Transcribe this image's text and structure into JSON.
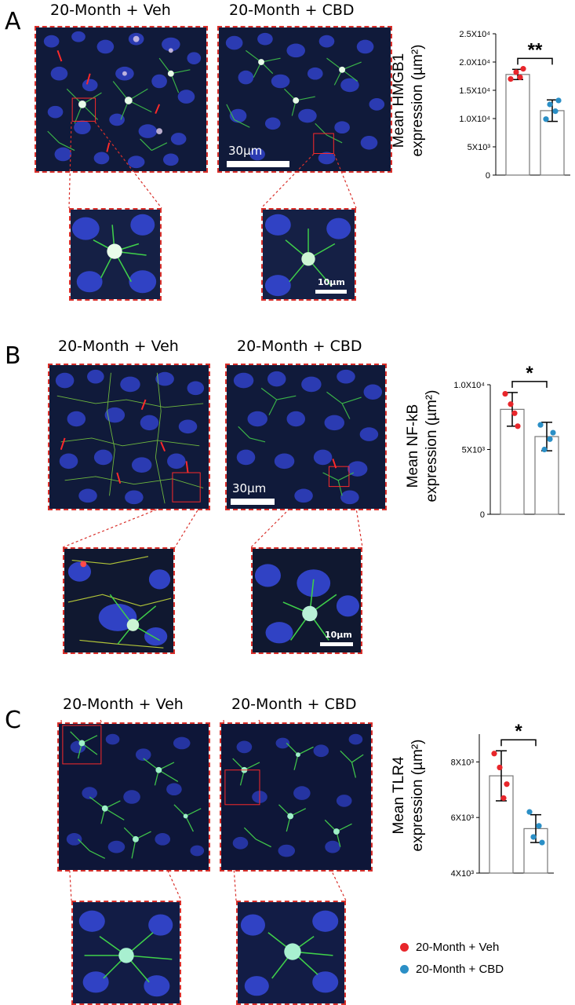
{
  "panels": [
    {
      "letter": "A",
      "veh_title": "20-Month + Veh",
      "cbd_title": "20-Month + CBD",
      "scalebar_main": "30µm",
      "scalebar_zoom": "10µm",
      "chart_ylabel_line1": "Mean HMGB1",
      "chart_ylabel_line2": "expression (µm²)",
      "ticks": [
        "0",
        "5X10³",
        "1.0X10⁴",
        "1.5X10⁴",
        "2.0X10⁴",
        "2.5X10⁴"
      ],
      "significance": "**"
    },
    {
      "letter": "B",
      "veh_title": "20-Month + Veh",
      "cbd_title": "20-Month + CBD",
      "scalebar_main": "30µm",
      "scalebar_zoom": "10µm",
      "chart_ylabel_line1": "Mean NF-kB",
      "chart_ylabel_line2": "expression (µm²)",
      "ticks": [
        "0",
        "5X10³",
        "1.0X10⁴"
      ],
      "significance": "*"
    },
    {
      "letter": "C",
      "veh_title": "20-Month + Veh",
      "cbd_title": "20-Month + CBD",
      "chart_ylabel_line1": "Mean TLR4",
      "chart_ylabel_line2": "expression (µm²)",
      "ticks": [
        "4X10³",
        "6X10³",
        "8X10³"
      ],
      "significance": "*"
    }
  ],
  "legend": {
    "veh": "20-Month + Veh",
    "cbd": "20-Month + CBD",
    "veh_color": "#e8262b",
    "cbd_color": "#2b8fc6"
  },
  "chart_data": [
    {
      "type": "bar",
      "categories": [
        "20-Month + Veh",
        "20-Month + CBD"
      ],
      "values": [
        17800,
        11400
      ],
      "errors": [
        900,
        1900
      ],
      "points": [
        [
          17000,
          18200,
          18800,
          17300
        ],
        [
          9900,
          11300,
          12500,
          13200
        ]
      ],
      "ylim": [
        0,
        25000
      ],
      "yticks": [
        0,
        5000,
        10000,
        15000,
        20000,
        25000
      ],
      "ylabel": "Mean HMGB1 expression (µm²)",
      "significance": "**"
    },
    {
      "type": "bar",
      "categories": [
        "20-Month + Veh",
        "20-Month + CBD"
      ],
      "values": [
        8100,
        6000
      ],
      "errors": [
        1300,
        1100
      ],
      "points": [
        [
          9300,
          8500,
          6800,
          7800
        ],
        [
          6900,
          5800,
          5000,
          6300
        ]
      ],
      "ylim": [
        0,
        10000
      ],
      "yticks": [
        0,
        5000,
        10000
      ],
      "ylabel": "Mean NF-kB expression (µm²)",
      "significance": "*"
    },
    {
      "type": "bar",
      "categories": [
        "20-Month + Veh",
        "20-Month + CBD"
      ],
      "values": [
        7500,
        5600
      ],
      "errors": [
        900,
        500
      ],
      "points": [
        [
          8300,
          7800,
          7200,
          6700
        ],
        [
          6200,
          5700,
          5300,
          5100
        ]
      ],
      "ylim": [
        4000,
        9000
      ],
      "yticks": [
        4000,
        6000,
        8000
      ],
      "ylabel": "Mean TLR4 expression (µm²)",
      "significance": "*"
    }
  ]
}
